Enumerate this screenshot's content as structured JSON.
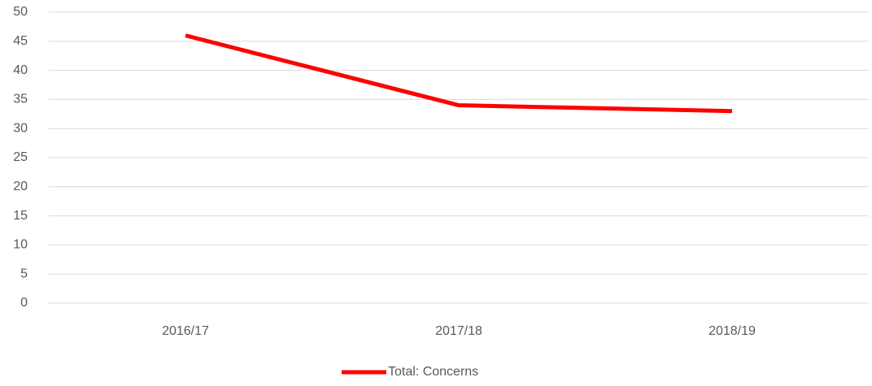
{
  "chart_data": {
    "type": "line",
    "categories": [
      "2016/17",
      "2017/18",
      "2018/19"
    ],
    "series": [
      {
        "name": "Total: Concerns",
        "color": "#ff0000",
        "values": [
          46,
          34,
          33
        ]
      }
    ],
    "ylim": [
      0,
      50
    ],
    "yticks": [
      0,
      5,
      10,
      15,
      20,
      25,
      30,
      35,
      40,
      45,
      50
    ],
    "grid": true,
    "legend": "bottom"
  }
}
